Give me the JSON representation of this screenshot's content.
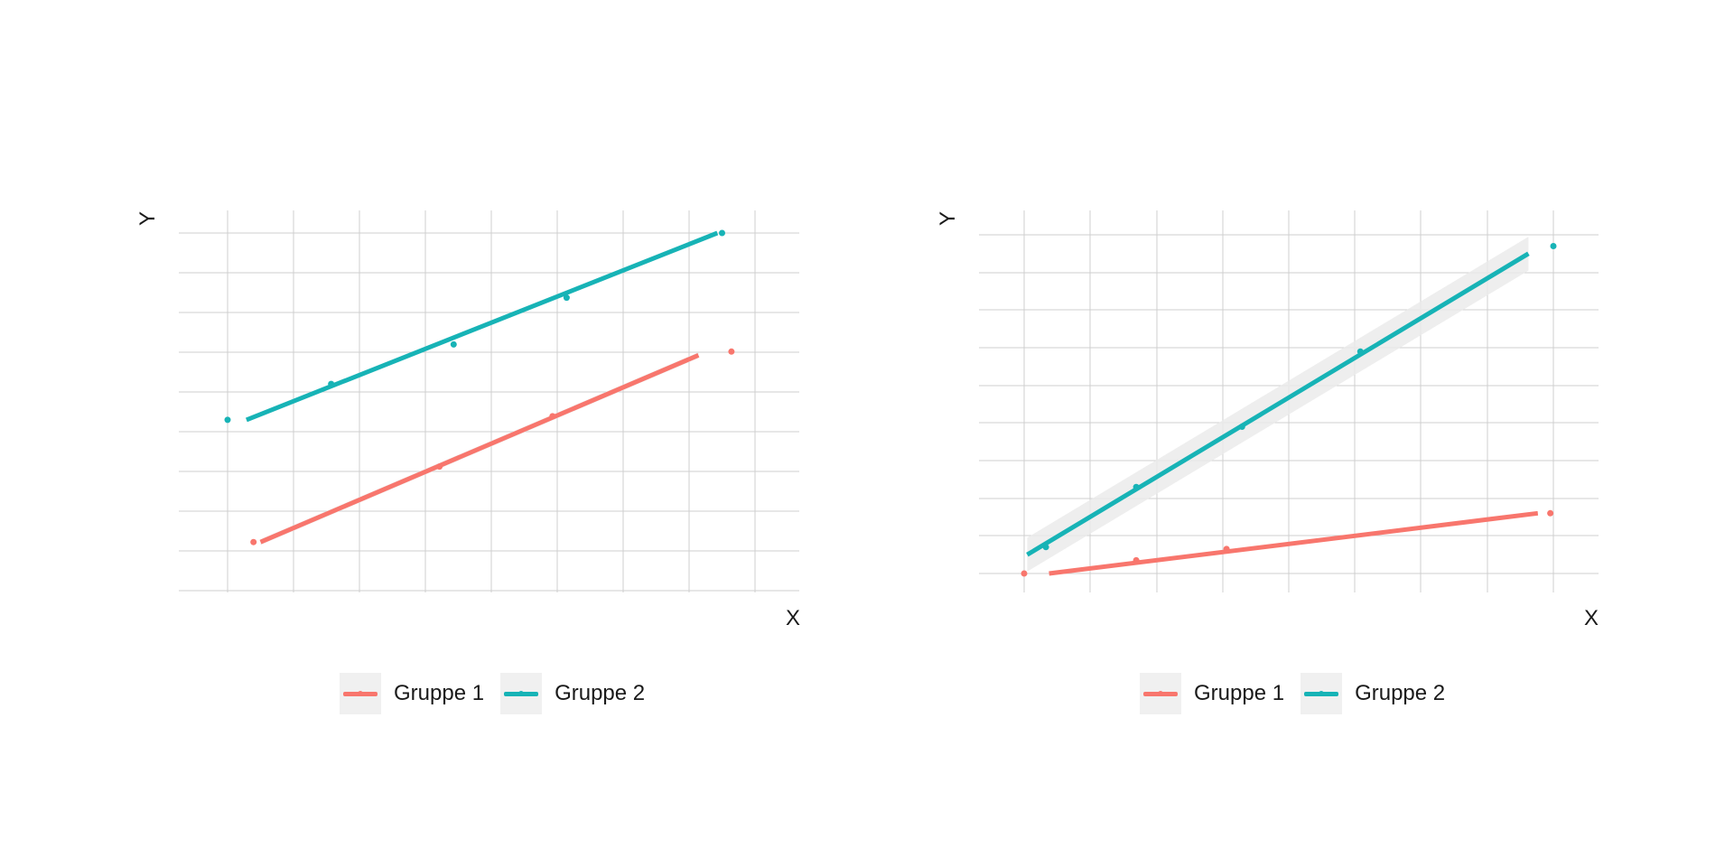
{
  "colors": {
    "gruppe1": "#F8766D",
    "gruppe2": "#17B3B6",
    "grid": "#cfcfcf",
    "band": "#ebebeb"
  },
  "chart_data": [
    {
      "type": "scatter",
      "xlabel": "X",
      "ylabel": "Y",
      "xlim": [
        -0.4,
        10.8
      ],
      "ylim": [
        -0.5,
        9.1
      ],
      "grid": true,
      "legend": "bottom",
      "series": [
        {
          "name": "Gruppe 1",
          "color": "#F8766D",
          "points": [
            [
              0.15,
              0.5
            ],
            [
              4.1,
              2.6
            ],
            [
              6.5,
              4.0
            ],
            [
              10.3,
              5.8
            ]
          ],
          "fit": [
            [
              0.3,
              0.5
            ],
            [
              9.6,
              5.7
            ]
          ],
          "band": 0.08
        },
        {
          "name": "Gruppe 2",
          "color": "#17B3B6",
          "points": [
            [
              -0.4,
              3.9
            ],
            [
              1.8,
              4.9
            ],
            [
              4.4,
              6.0
            ],
            [
              6.8,
              7.3
            ],
            [
              10.1,
              9.1
            ]
          ],
          "fit": [
            [
              0.0,
              3.9
            ],
            [
              10.0,
              9.1
            ]
          ],
          "band": 0.05
        }
      ]
    },
    {
      "type": "scatter",
      "xlabel": "X",
      "ylabel": "Y",
      "xlim": [
        -0.25,
        8.25
      ],
      "ylim": [
        0,
        9.0
      ],
      "grid": true,
      "legend": "bottom",
      "series": [
        {
          "name": "Gruppe 1",
          "color": "#F8766D",
          "points": [
            [
              -0.25,
              0.0
            ],
            [
              1.55,
              0.35
            ],
            [
              3.0,
              0.65
            ],
            [
              8.2,
              1.6
            ]
          ],
          "fit": [
            [
              0.15,
              0.0
            ],
            [
              8.0,
              1.6
            ]
          ],
          "band": 0.05
        },
        {
          "name": "Gruppe 2",
          "color": "#17B3B6",
          "points": [
            [
              0.1,
              0.7
            ],
            [
              1.55,
              2.3
            ],
            [
              3.25,
              3.9
            ],
            [
              5.15,
              5.9
            ],
            [
              8.25,
              8.7
            ]
          ],
          "fit": [
            [
              -0.2,
              0.5
            ],
            [
              7.85,
              8.5
            ]
          ],
          "band": 0.45
        }
      ]
    }
  ],
  "legend": {
    "items": [
      {
        "label": "Gruppe 1"
      },
      {
        "label": "Gruppe 2"
      }
    ]
  }
}
